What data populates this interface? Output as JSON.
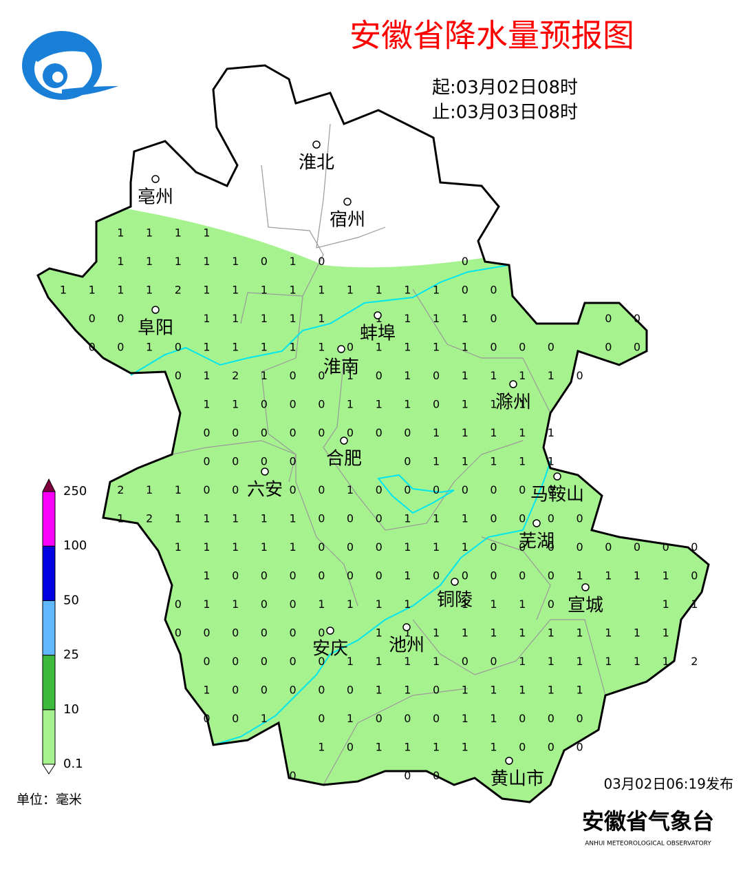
{
  "header": {
    "title": "安徽省降水量预报图",
    "start": "起:03月02日08时",
    "end": "止:03月03日08时"
  },
  "legend": {
    "levels": [
      0.1,
      10,
      25,
      50,
      100,
      250
    ],
    "colors": [
      "#a6f28f",
      "#3dba3d",
      "#61b8ff",
      "#0000e1",
      "#fa00fa",
      "#800040"
    ],
    "unit": "单位：毫米"
  },
  "cities": [
    {
      "name": "淮北"
    },
    {
      "name": "亳州"
    },
    {
      "name": "宿州"
    },
    {
      "name": "蚌埠"
    },
    {
      "name": "阜阳"
    },
    {
      "name": "淮南"
    },
    {
      "name": "滁州"
    },
    {
      "name": "合肥"
    },
    {
      "name": "六安"
    },
    {
      "name": "马鞍山"
    },
    {
      "name": "芜湖"
    },
    {
      "name": "铜陵"
    },
    {
      "name": "宣城"
    },
    {
      "name": "安庆"
    },
    {
      "name": "池州"
    },
    {
      "name": "黄山市"
    }
  ],
  "grid": {
    "rows": [
      [
        null,
        null,
        1,
        1,
        1,
        1
      ],
      [
        null,
        null,
        1,
        1,
        1,
        1,
        1,
        0,
        1,
        0,
        null,
        null,
        null,
        null,
        0
      ],
      [
        1,
        1,
        1,
        1,
        2,
        1,
        1,
        1,
        1,
        1,
        1,
        1,
        1,
        1,
        0,
        0
      ],
      [
        null,
        0,
        0,
        null,
        null,
        1,
        1,
        1,
        1,
        1,
        null,
        1,
        1,
        1,
        1,
        0,
        null,
        null,
        null,
        0,
        0
      ],
      [
        null,
        0,
        0,
        1,
        0,
        1,
        1,
        1,
        1,
        1,
        0,
        1,
        1,
        1,
        1,
        0,
        0,
        0,
        null,
        0,
        0
      ],
      [
        null,
        null,
        null,
        null,
        0,
        1,
        2,
        1,
        0,
        0,
        1,
        0,
        1,
        0,
        1,
        1,
        1,
        1,
        0
      ],
      [
        null,
        null,
        null,
        null,
        null,
        1,
        1,
        0,
        0,
        0,
        1,
        1,
        1,
        0,
        1,
        1,
        1
      ],
      [
        null,
        null,
        null,
        null,
        null,
        0,
        0,
        0,
        0,
        0,
        0,
        0,
        0,
        1,
        1,
        1,
        1,
        1
      ],
      [
        null,
        null,
        null,
        null,
        null,
        0,
        0,
        0,
        0,
        null,
        null,
        null,
        0,
        1,
        1,
        1,
        1,
        1
      ],
      [
        null,
        null,
        2,
        1,
        1,
        0,
        0,
        null,
        0,
        0,
        1,
        0,
        0,
        0,
        0,
        0,
        0,
        0
      ],
      [
        null,
        null,
        1,
        2,
        1,
        1,
        1,
        1,
        1,
        0,
        0,
        0,
        1,
        1,
        1,
        0,
        0,
        0,
        0
      ],
      [
        null,
        null,
        null,
        null,
        1,
        1,
        1,
        1,
        1,
        0,
        0,
        0,
        1,
        1,
        1,
        0,
        0,
        0,
        0,
        0,
        0,
        0,
        0
      ],
      [
        null,
        null,
        null,
        null,
        null,
        1,
        0,
        0,
        0,
        0,
        0,
        0,
        1,
        0,
        0,
        0,
        0,
        0,
        1,
        1,
        1,
        1,
        0
      ],
      [
        null,
        null,
        null,
        null,
        0,
        1,
        1,
        0,
        0,
        1,
        1,
        1,
        1,
        null,
        1,
        1,
        1,
        0,
        null,
        null,
        null,
        1,
        1
      ],
      [
        null,
        null,
        null,
        null,
        0,
        0,
        0,
        0,
        0,
        0,
        null,
        1,
        1,
        1,
        1,
        1,
        1,
        1,
        1,
        1,
        1,
        1
      ],
      [
        null,
        null,
        null,
        null,
        null,
        0,
        0,
        0,
        0,
        0,
        1,
        1,
        1,
        1,
        0,
        0,
        1,
        1,
        1,
        1,
        1,
        1,
        2
      ],
      [
        null,
        null,
        null,
        null,
        null,
        1,
        0,
        0,
        0,
        0,
        0,
        1,
        1,
        0,
        1,
        1,
        1,
        1,
        1
      ],
      [
        null,
        null,
        null,
        null,
        null,
        0,
        0,
        1,
        null,
        0,
        1,
        0,
        0,
        0,
        1,
        1,
        0,
        0,
        0
      ],
      [
        null,
        null,
        null,
        null,
        null,
        null,
        null,
        null,
        null,
        1,
        0,
        1,
        1,
        1,
        1,
        1,
        0,
        0,
        0
      ],
      [
        null,
        null,
        null,
        null,
        null,
        null,
        null,
        null,
        0,
        null,
        null,
        null,
        0,
        0
      ]
    ]
  },
  "footer": {
    "published": "03月02日06:19发布",
    "org": "安徽省气象台",
    "org_en": "ANHUI METEOROLOGICAL OBSERVATORY"
  }
}
